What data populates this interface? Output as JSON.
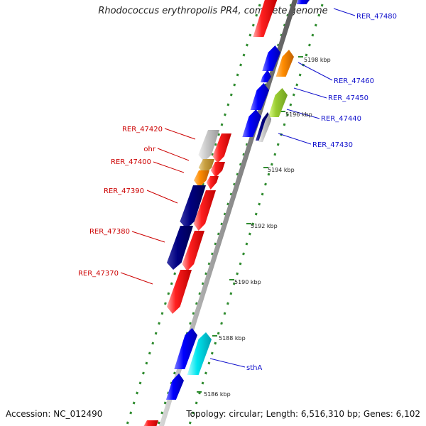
{
  "title": "Rhodococcus erythropolis PR4, complete genome",
  "footer": {
    "accession": "Accession: NC_012490",
    "topology": "Topology: circular; Length: 6,516,310 bp; Genes: 6,102"
  },
  "colors": {
    "background": "#ffffff",
    "forward_label": "#1010cc",
    "reverse_label": "#cc0000",
    "ruler_dot": "#2e8b2e",
    "backbone": "#8c8c8c"
  },
  "ticks": [
    {
      "label": "5198 kbp"
    },
    {
      "label": "5196 kbp"
    },
    {
      "label": "5194 kbp"
    },
    {
      "label": "5192 kbp"
    },
    {
      "label": "5190 kbp"
    },
    {
      "label": "5188 kbp"
    },
    {
      "label": "5186 kbp"
    }
  ],
  "labels": {
    "forward": [
      "RER_47480",
      "RER_47460",
      "RER_47450",
      "RER_47440",
      "RER_47430",
      "sthA"
    ],
    "reverse": [
      "RER_47420",
      "ohr",
      "RER_47400",
      "RER_47390",
      "RER_47380",
      "RER_47370"
    ]
  },
  "features": [
    {
      "name": "red",
      "color": "#ff0000"
    },
    {
      "name": "blue",
      "color": "#0000ff"
    },
    {
      "name": "orange",
      "color": "#ff8c00"
    },
    {
      "name": "green",
      "color": "#9acd32"
    },
    {
      "name": "grey",
      "color": "#c0c0c0"
    },
    {
      "name": "navy",
      "color": "#000080"
    },
    {
      "name": "tan",
      "color": "#c8a040"
    },
    {
      "name": "cyan",
      "color": "#00e5ee"
    }
  ]
}
